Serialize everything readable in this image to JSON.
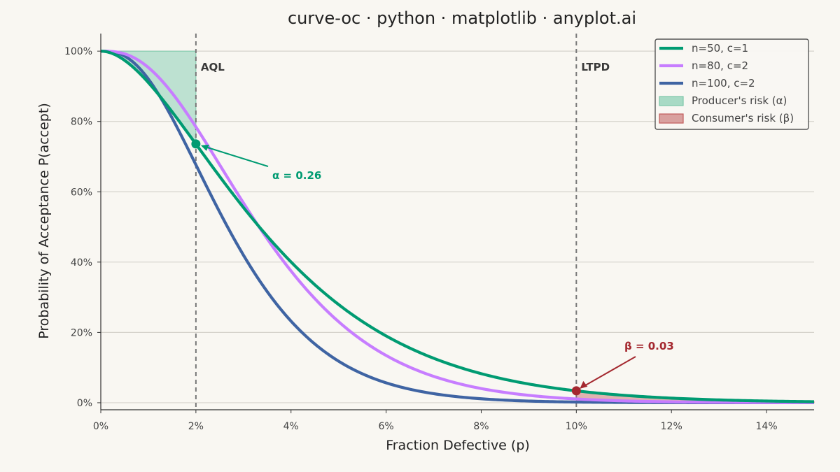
{
  "chart_data": {
    "type": "line",
    "title": "curve-oc · python · matplotlib · anyplot.ai",
    "xlabel": "Fraction Defective (p)",
    "ylabel": "Probability of Acceptance P(accept)",
    "xlim": [
      0,
      0.15
    ],
    "ylim": [
      -0.02,
      1.05
    ],
    "x_ticks": [
      0,
      0.02,
      0.04,
      0.06,
      0.08,
      0.1,
      0.12,
      0.14
    ],
    "x_tick_labels": [
      "0%",
      "2%",
      "4%",
      "6%",
      "8%",
      "10%",
      "12%",
      "14%"
    ],
    "y_ticks": [
      0,
      0.2,
      0.4,
      0.6,
      0.8,
      1.0
    ],
    "y_tick_labels": [
      "0%",
      "20%",
      "40%",
      "60%",
      "80%",
      "100%"
    ],
    "grid": "horizontal",
    "legend_position": "top-right",
    "series": [
      {
        "name": "n=50, c=1",
        "n": 50,
        "c": 1,
        "color": "#009b72"
      },
      {
        "name": "n=80, c=2",
        "n": 80,
        "c": 2,
        "color": "#c77dff"
      },
      {
        "name": "n=100, c=2",
        "n": 100,
        "c": 2,
        "color": "#3f64a3"
      }
    ],
    "reference_lines": [
      {
        "label": "AQL",
        "x": 0.02
      },
      {
        "label": "LTPD",
        "x": 0.1
      }
    ],
    "shaded_regions": [
      {
        "name": "Producer's risk (α)",
        "color": "#a8dac5",
        "edge": "#7cc8a9"
      },
      {
        "name": "Consumer's risk (β)",
        "color": "#d9a19f",
        "edge": "#c25c5c"
      }
    ],
    "annotations": [
      {
        "text": "α = 0.26",
        "x": 0.02,
        "y": 0.736,
        "color": "#009b72"
      },
      {
        "text": "β = 0.03",
        "x": 0.1,
        "y": 0.034,
        "color": "#a4282f"
      }
    ]
  }
}
